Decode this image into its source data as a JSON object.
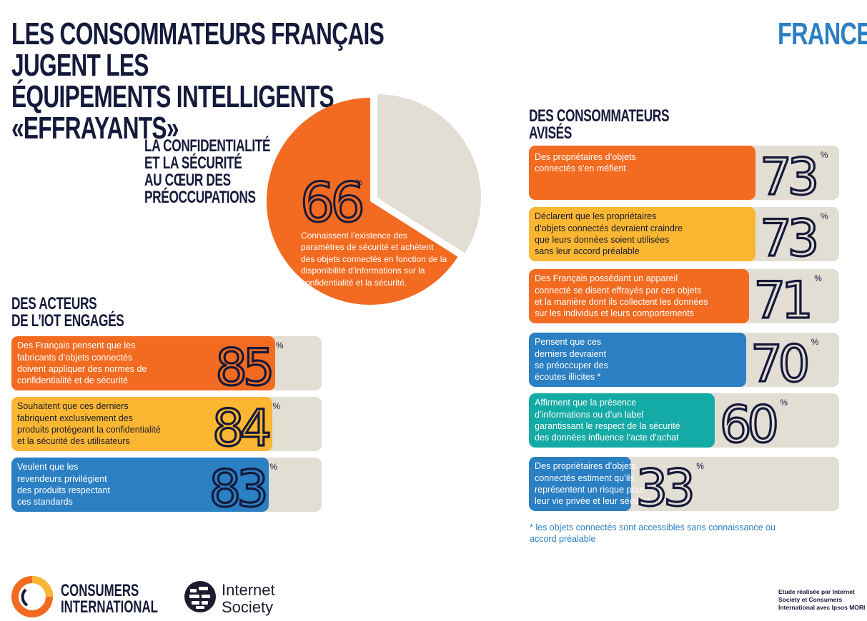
{
  "header": {
    "title_lines": [
      "LES CONSOMMATEURS  FRANÇAIS JUGENT LES",
      "ÉQUIPEMENTS INTELLIGENTS",
      "«EFFRAYANTS»"
    ],
    "country": "FRANCE"
  },
  "pie_section": {
    "heading_lines": [
      "LA CONFIDENTIALITÉ",
      "ET LA SÉCURITÉ",
      "AU CŒUR DES",
      "PRÉOCCUPATIONS"
    ],
    "value_text": "66",
    "percent_sign": "%",
    "description": "Connaissent l’existence des paramètres de sécurité et achètent des objets connectés en fonction de la disponibilité d’informations sur la confidentialité et la sécurité."
  },
  "left_section": {
    "heading_lines": [
      "DES ACTEURS",
      "DE L’IOT ENGAGÉS"
    ]
  },
  "right_section": {
    "heading_lines": [
      "DES CONSOMMATEURS",
      "AVISÉS"
    ]
  },
  "chart_data": [
    {
      "type": "pie",
      "values": [
        66,
        34
      ],
      "colors": [
        "#f26b21",
        "#e3ded4"
      ]
    },
    {
      "type": "bar",
      "orientation": "horizontal",
      "unit": "%",
      "ylim": [
        0,
        100
      ],
      "categories": [
        [
          "Des Français pensent que les",
          "fabricants d’objets connectés",
          "doivent appliquer des normes de",
          "confidentialité et de sécurité"
        ],
        [
          "Souhaitent que ces derniers",
          "fabriquent exclusivement des",
          "produits protégeant la confidentialité",
          "et la sécurité des utilisateurs"
        ],
        [
          "Veulent que les",
          "revendeurs privilégient",
          "des produits respectant",
          "ces standards"
        ]
      ],
      "values": [
        85,
        84,
        83
      ],
      "colors": [
        "#f26b21",
        "#fbb632",
        "#2b7fc3"
      ]
    },
    {
      "type": "bar",
      "orientation": "horizontal",
      "unit": "%",
      "ylim": [
        0,
        100
      ],
      "categories": [
        [
          "Des propriétaires d’objets",
          "connectés s’en méfient"
        ],
        [
          "Déclarent que les propriétaires",
          "d’objets connectés devraient craindre",
          "que leurs données soient utilisées",
          "sans leur accord préalable"
        ],
        [
          "Des Français possédant un appareil",
          "connecté se disent effrayés par ces objets",
          "et la manière dont ils collectent les données",
          "sur les individus et leurs comportements"
        ],
        [
          "Pensent que ces",
          "derniers devraient",
          "se préoccuper des",
          "écoutes illicites *"
        ],
        [
          "Affirment que la présence",
          "d’informations ou d’un label",
          "garantissant le respect de la sécurité",
          "des données influence l’acte d’achat"
        ],
        [
          "Des propriétaires d’objets",
          "connectés estiment qu’ils",
          "représentent un risque pour",
          "leur vie privée et leur sécurité"
        ]
      ],
      "values": [
        73,
        73,
        71,
        70,
        60,
        33
      ],
      "colors": [
        "#f26b21",
        "#fbb632",
        "#f26b21",
        "#2b7fc3",
        "#14aaa5",
        "#2b7fc3"
      ]
    }
  ],
  "footnote_lines": [
    "* les objets connectés sont accessibles sans connaissance ou",
    "accord préalable"
  ],
  "logos": {
    "consumers_international": [
      "CONSUMERS",
      "INTERNATIONAL"
    ],
    "internet_society": [
      "Internet",
      "Society"
    ]
  },
  "study_note_lines": [
    "Etude réalisée par Internet",
    "Society et Consumers",
    "International avec Ipsos MORI"
  ]
}
